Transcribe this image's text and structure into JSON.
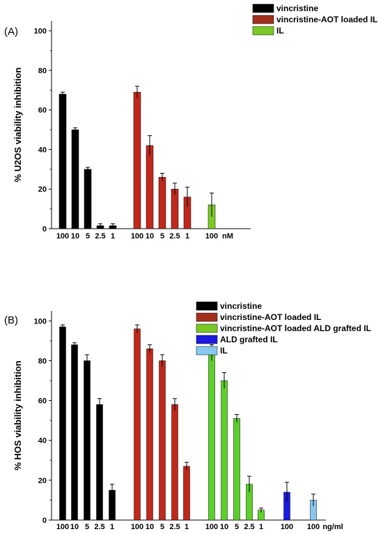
{
  "chart_data": [
    {
      "type": "bar",
      "panel_label": "(A)",
      "ylabel": "% U2OS viability inhibition",
      "ylim": [
        0,
        105
      ],
      "yticks": [
        0,
        20,
        40,
        60,
        80,
        100
      ],
      "unit_label": "nM",
      "legend": [
        "vincristine",
        "vincristine-AOT loaded IL",
        "IL"
      ],
      "legend_colors": [
        "#000000",
        "#a0301c",
        "#7cc826"
      ],
      "groups": [
        {
          "series": "vincristine",
          "color": "#000000",
          "categories": [
            "100",
            "10",
            "5",
            "2.5",
            "1"
          ],
          "values": [
            68,
            50,
            30,
            1.5,
            1.5
          ],
          "errors": [
            1,
            1,
            1,
            1,
            1
          ]
        },
        {
          "series": "vincristine-AOT loaded IL",
          "color": "#c0281c",
          "categories": [
            "100",
            "10",
            "5",
            "2.5",
            "1"
          ],
          "values": [
            69,
            42,
            26,
            20,
            16
          ],
          "errors": [
            3,
            5,
            2,
            3,
            5
          ]
        },
        {
          "series": "IL",
          "color": "#7cc826",
          "categories": [
            "100"
          ],
          "values": [
            12
          ],
          "errors": [
            6
          ]
        }
      ]
    },
    {
      "type": "bar",
      "panel_label": "(B)",
      "ylabel": "% HOS viability inhibition",
      "ylim": [
        0,
        105
      ],
      "yticks": [
        0,
        20,
        40,
        60,
        80,
        100
      ],
      "unit_label": "ng/ml",
      "legend": [
        "vincristine",
        "vincristine-AOT loaded IL",
        "vincristine-AOT loaded ALD grafted IL",
        "ALD grafted IL",
        "IL"
      ],
      "legend_colors": [
        "#000000",
        "#a0301c",
        "#7cc826",
        "#1a1ae0",
        "#88c8f0"
      ],
      "groups": [
        {
          "series": "vincristine",
          "color": "#000000",
          "categories": [
            "100",
            "10",
            "5",
            "2.5",
            "1"
          ],
          "values": [
            97,
            88,
            80,
            58,
            15
          ],
          "errors": [
            1,
            1,
            3,
            3,
            3
          ]
        },
        {
          "series": "vincristine-AOT loaded IL",
          "color": "#c0281c",
          "categories": [
            "100",
            "10",
            "5",
            "2.5",
            "1"
          ],
          "values": [
            96,
            86,
            80,
            58,
            27
          ],
          "errors": [
            2,
            2,
            3,
            3,
            2
          ]
        },
        {
          "series": "vincristine-AOT loaded ALD grafted IL",
          "color": "#5cd02a",
          "categories": [
            "100",
            "10",
            "5",
            "2.5",
            "1"
          ],
          "values": [
            84,
            70,
            51,
            18,
            5
          ],
          "errors": [
            4,
            4,
            2,
            4,
            1
          ]
        },
        {
          "series": "ALD grafted IL",
          "color": "#1a1ae0",
          "categories": [
            "100"
          ],
          "values": [
            14
          ],
          "errors": [
            5
          ]
        },
        {
          "series": "IL",
          "color": "#88c8f0",
          "categories": [
            "100"
          ],
          "values": [
            10
          ],
          "errors": [
            3
          ]
        }
      ]
    }
  ]
}
